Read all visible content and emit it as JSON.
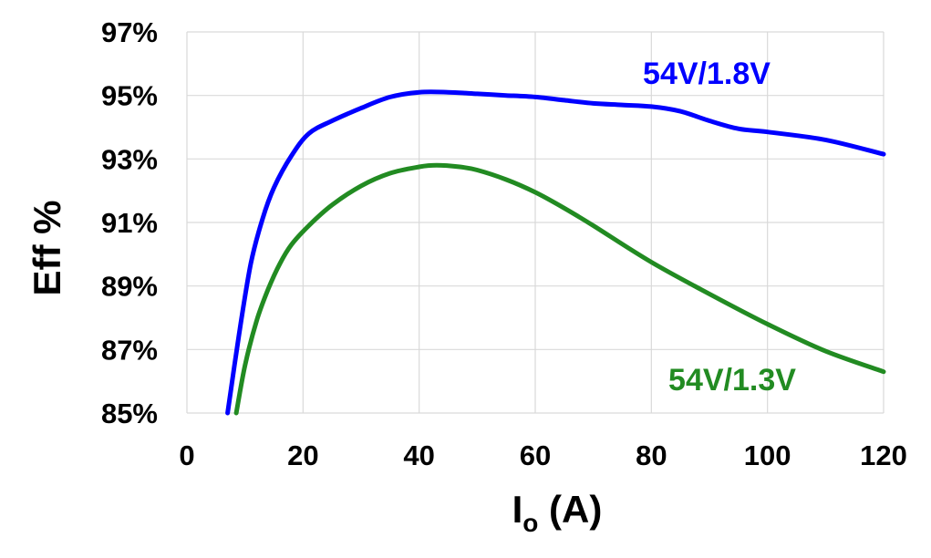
{
  "chart_data": {
    "type": "line",
    "title": "",
    "xlabel_main": "I",
    "xlabel_sub": "o",
    "xlabel_unit": " (A)",
    "ylabel": "Eff %",
    "xlim": [
      0,
      120
    ],
    "ylim": [
      85,
      97
    ],
    "x_ticks": [
      0,
      20,
      40,
      60,
      80,
      100,
      120
    ],
    "x_tick_labels": [
      "0",
      "20",
      "40",
      "60",
      "80",
      "100",
      "120"
    ],
    "y_ticks": [
      85,
      87,
      89,
      91,
      93,
      95,
      97
    ],
    "y_tick_labels": [
      "85%",
      "87%",
      "89%",
      "91%",
      "93%",
      "95%",
      "97%"
    ],
    "grid": true,
    "series": [
      {
        "name": "54V/1.8V",
        "color": "#0000ff",
        "x": [
          7,
          9,
          11,
          13,
          15,
          18,
          21,
          25,
          30,
          35,
          40,
          45,
          50,
          55,
          60,
          65,
          70,
          75,
          80,
          85,
          90,
          95,
          100,
          110,
          120
        ],
        "y": [
          85.0,
          87.5,
          89.7,
          91.1,
          92.1,
          93.1,
          93.8,
          94.2,
          94.6,
          94.95,
          95.1,
          95.1,
          95.05,
          95.0,
          94.95,
          94.85,
          94.75,
          94.7,
          94.65,
          94.5,
          94.2,
          93.95,
          93.85,
          93.6,
          93.15
        ]
      },
      {
        "name": "54V/1.3V",
        "color": "#228b22",
        "x": [
          8.5,
          10,
          12,
          14,
          16,
          18,
          21,
          25,
          30,
          35,
          40,
          43,
          47,
          50,
          55,
          60,
          65,
          70,
          80,
          90,
          100,
          110,
          120
        ],
        "y": [
          85.0,
          86.5,
          87.9,
          88.9,
          89.7,
          90.3,
          90.9,
          91.55,
          92.15,
          92.55,
          92.75,
          92.8,
          92.75,
          92.65,
          92.35,
          91.95,
          91.45,
          90.9,
          89.75,
          88.75,
          87.8,
          86.95,
          86.3
        ]
      }
    ]
  }
}
